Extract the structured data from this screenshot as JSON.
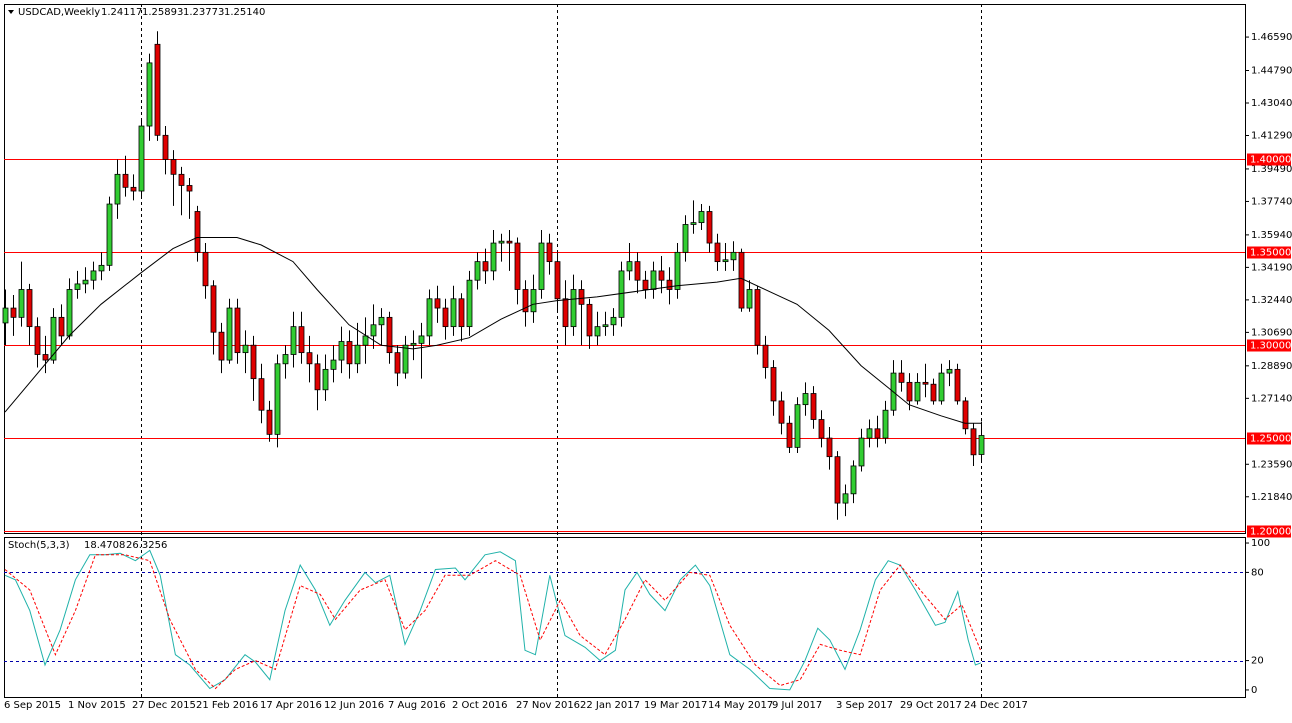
{
  "chart_data": {
    "type": "candlestick",
    "header": {
      "symbol": "USDCAD,Weekly",
      "values": [
        "1.24117",
        "1.25893",
        "1.23773",
        "1.25140"
      ]
    },
    "up_color": "#32cd32",
    "down_color": "#e00000",
    "categories": [
      "6 Sep 2015",
      null,
      null,
      null,
      null,
      null,
      null,
      null,
      "1 Nov 2015",
      null,
      null,
      null,
      null,
      null,
      null,
      null,
      "27 Dec 2015",
      null,
      null,
      null,
      null,
      null,
      null,
      null,
      "21 Feb 2016",
      null,
      null,
      null,
      null,
      null,
      null,
      null,
      "17 Apr 2016",
      null,
      null,
      null,
      null,
      null,
      null,
      null,
      "12 Jun 2016",
      null,
      null,
      null,
      null,
      null,
      null,
      null,
      "7 Aug 2016",
      null,
      null,
      null,
      null,
      null,
      null,
      null,
      "2 Oct 2016",
      null,
      null,
      null,
      null,
      null,
      null,
      null,
      "27 Nov 2016",
      null,
      null,
      null,
      null,
      null,
      null,
      null,
      "22 Jan 2017",
      null,
      null,
      null,
      null,
      null,
      null,
      null,
      "19 Mar 2017",
      null,
      null,
      null,
      null,
      null,
      null,
      null,
      "14 May 2017",
      null,
      null,
      null,
      null,
      null,
      null,
      null,
      "9 Jul 2017",
      null,
      null,
      null,
      null,
      null,
      null,
      null,
      "3 Sep 2017",
      null,
      null,
      null,
      null,
      null,
      null,
      null,
      "29 Oct 2017",
      null,
      null,
      null,
      null,
      null,
      null,
      null,
      "24 Dec 2017",
      null,
      null
    ],
    "ohlc": [
      [
        1.312,
        1.33,
        1.3,
        1.32
      ],
      [
        1.32,
        1.327,
        1.305,
        1.315
      ],
      [
        1.315,
        1.345,
        1.31,
        1.33
      ],
      [
        1.33,
        1.333,
        1.3,
        1.31
      ],
      [
        1.31,
        1.315,
        1.288,
        1.295
      ],
      [
        1.295,
        1.305,
        1.285,
        1.292
      ],
      [
        1.292,
        1.32,
        1.29,
        1.315
      ],
      [
        1.315,
        1.322,
        1.3,
        1.305
      ],
      [
        1.305,
        1.336,
        1.303,
        1.33
      ],
      [
        1.33,
        1.34,
        1.325,
        1.333
      ],
      [
        1.333,
        1.342,
        1.328,
        1.335
      ],
      [
        1.335,
        1.345,
        1.33,
        1.34
      ],
      [
        1.34,
        1.35,
        1.335,
        1.343
      ],
      [
        1.343,
        1.38,
        1.34,
        1.376
      ],
      [
        1.376,
        1.4,
        1.368,
        1.392
      ],
      [
        1.392,
        1.402,
        1.38,
        1.385
      ],
      [
        1.385,
        1.392,
        1.378,
        1.383
      ],
      [
        1.383,
        1.422,
        1.38,
        1.418
      ],
      [
        1.418,
        1.457,
        1.41,
        1.452
      ],
      [
        1.462,
        1.469,
        1.41,
        1.413
      ],
      [
        1.413,
        1.418,
        1.392,
        1.4
      ],
      [
        1.4,
        1.405,
        1.375,
        1.392
      ],
      [
        1.392,
        1.396,
        1.37,
        1.386
      ],
      [
        1.386,
        1.39,
        1.368,
        1.383
      ],
      [
        1.372,
        1.375,
        1.345,
        1.35
      ],
      [
        1.35,
        1.355,
        1.325,
        1.332
      ],
      [
        1.332,
        1.335,
        1.295,
        1.307
      ],
      [
        1.307,
        1.312,
        1.285,
        1.292
      ],
      [
        1.292,
        1.325,
        1.29,
        1.32
      ],
      [
        1.32,
        1.325,
        1.29,
        1.296
      ],
      [
        1.296,
        1.308,
        1.285,
        1.3
      ],
      [
        1.3,
        1.305,
        1.27,
        1.282
      ],
      [
        1.282,
        1.29,
        1.258,
        1.265
      ],
      [
        1.265,
        1.27,
        1.248,
        1.252
      ],
      [
        1.252,
        1.295,
        1.245,
        1.29
      ],
      [
        1.29,
        1.3,
        1.282,
        1.295
      ],
      [
        1.295,
        1.318,
        1.288,
        1.31
      ],
      [
        1.31,
        1.318,
        1.29,
        1.296
      ],
      [
        1.296,
        1.305,
        1.28,
        1.29
      ],
      [
        1.29,
        1.295,
        1.265,
        1.276
      ],
      [
        1.276,
        1.295,
        1.27,
        1.287
      ],
      [
        1.287,
        1.3,
        1.28,
        1.292
      ],
      [
        1.292,
        1.31,
        1.285,
        1.302
      ],
      [
        1.302,
        1.308,
        1.282,
        1.29
      ],
      [
        1.29,
        1.312,
        1.285,
        1.3
      ],
      [
        1.3,
        1.315,
        1.29,
        1.305
      ],
      [
        1.305,
        1.322,
        1.298,
        1.311
      ],
      [
        1.311,
        1.32,
        1.3,
        1.315
      ],
      [
        1.315,
        1.318,
        1.29,
        1.296
      ],
      [
        1.296,
        1.3,
        1.278,
        1.285
      ],
      [
        1.285,
        1.305,
        1.282,
        1.3
      ],
      [
        1.3,
        1.308,
        1.292,
        1.301
      ],
      [
        1.301,
        1.312,
        1.282,
        1.305
      ],
      [
        1.305,
        1.33,
        1.3,
        1.325
      ],
      [
        1.325,
        1.332,
        1.312,
        1.32
      ],
      [
        1.32,
        1.325,
        1.303,
        1.31
      ],
      [
        1.31,
        1.332,
        1.305,
        1.325
      ],
      [
        1.325,
        1.328,
        1.302,
        1.31
      ],
      [
        1.31,
        1.34,
        1.305,
        1.335
      ],
      [
        1.335,
        1.35,
        1.33,
        1.345
      ],
      [
        1.345,
        1.352,
        1.333,
        1.34
      ],
      [
        1.34,
        1.362,
        1.335,
        1.355
      ],
      [
        1.355,
        1.36,
        1.345,
        1.356
      ],
      [
        1.356,
        1.362,
        1.34,
        1.355
      ],
      [
        1.355,
        1.358,
        1.322,
        1.33
      ],
      [
        1.33,
        1.335,
        1.31,
        1.318
      ],
      [
        1.318,
        1.338,
        1.312,
        1.33
      ],
      [
        1.33,
        1.362,
        1.325,
        1.355
      ],
      [
        1.355,
        1.36,
        1.338,
        1.345
      ],
      [
        1.345,
        1.35,
        1.318,
        1.325
      ],
      [
        1.325,
        1.335,
        1.3,
        1.31
      ],
      [
        1.31,
        1.338,
        1.305,
        1.33
      ],
      [
        1.33,
        1.335,
        1.3,
        1.322
      ],
      [
        1.322,
        1.325,
        1.298,
        1.305
      ],
      [
        1.305,
        1.318,
        1.3,
        1.31
      ],
      [
        1.31,
        1.318,
        1.305,
        1.311
      ],
      [
        1.311,
        1.32,
        1.305,
        1.315
      ],
      [
        1.315,
        1.345,
        1.31,
        1.34
      ],
      [
        1.34,
        1.355,
        1.335,
        1.345
      ],
      [
        1.345,
        1.35,
        1.328,
        1.335
      ],
      [
        1.335,
        1.34,
        1.325,
        1.33
      ],
      [
        1.33,
        1.345,
        1.325,
        1.34
      ],
      [
        1.34,
        1.348,
        1.328,
        1.335
      ],
      [
        1.335,
        1.342,
        1.322,
        1.33
      ],
      [
        1.33,
        1.355,
        1.325,
        1.35
      ],
      [
        1.35,
        1.37,
        1.345,
        1.365
      ],
      [
        1.365,
        1.378,
        1.36,
        1.366
      ],
      [
        1.366,
        1.376,
        1.362,
        1.372
      ],
      [
        1.372,
        1.375,
        1.35,
        1.355
      ],
      [
        1.355,
        1.36,
        1.34,
        1.345
      ],
      [
        1.345,
        1.355,
        1.34,
        1.346
      ],
      [
        1.346,
        1.356,
        1.34,
        1.35
      ],
      [
        1.35,
        1.352,
        1.318,
        1.32
      ],
      [
        1.32,
        1.335,
        1.318,
        1.33
      ],
      [
        1.33,
        1.332,
        1.295,
        1.3
      ],
      [
        1.3,
        1.305,
        1.282,
        1.288
      ],
      [
        1.288,
        1.292,
        1.262,
        1.27
      ],
      [
        1.27,
        1.275,
        1.252,
        1.258
      ],
      [
        1.258,
        1.262,
        1.242,
        1.245
      ],
      [
        1.245,
        1.272,
        1.242,
        1.268
      ],
      [
        1.268,
        1.28,
        1.262,
        1.274
      ],
      [
        1.274,
        1.278,
        1.255,
        1.26
      ],
      [
        1.26,
        1.265,
        1.245,
        1.25
      ],
      [
        1.25,
        1.256,
        1.233,
        1.24
      ],
      [
        1.24,
        1.243,
        1.206,
        1.215
      ],
      [
        1.215,
        1.225,
        1.208,
        1.22
      ],
      [
        1.22,
        1.238,
        1.215,
        1.235
      ],
      [
        1.235,
        1.255,
        1.232,
        1.25
      ],
      [
        1.25,
        1.26,
        1.245,
        1.255
      ],
      [
        1.255,
        1.262,
        1.245,
        1.25
      ],
      [
        1.25,
        1.27,
        1.247,
        1.265
      ],
      [
        1.265,
        1.292,
        1.262,
        1.285
      ],
      [
        1.285,
        1.292,
        1.275,
        1.28
      ],
      [
        1.28,
        1.285,
        1.265,
        1.27
      ],
      [
        1.27,
        1.285,
        1.268,
        1.28
      ],
      [
        1.28,
        1.29,
        1.272,
        1.279
      ],
      [
        1.279,
        1.282,
        1.268,
        1.27
      ],
      [
        1.27,
        1.29,
        1.268,
        1.285
      ],
      [
        1.285,
        1.292,
        1.278,
        1.287
      ],
      [
        1.287,
        1.29,
        1.268,
        1.27
      ],
      [
        1.27,
        1.272,
        1.252,
        1.255
      ],
      [
        1.255,
        1.258,
        1.235,
        1.241
      ],
      [
        1.24117,
        1.25893,
        1.23773,
        1.2514
      ]
    ],
    "xlim": [
      -0.125,
      155
    ],
    "ylim": [
      1.1989,
      1.4837
    ],
    "yticks": [
      {
        "value": 1.4659,
        "label": "1.46590"
      },
      {
        "value": 1.4479,
        "label": "1.44790"
      },
      {
        "value": 1.4304,
        "label": "1.43040"
      },
      {
        "value": 1.4129,
        "label": "1.41290"
      },
      {
        "value": 1.3949,
        "label": "1.39490"
      },
      {
        "value": 1.3774,
        "label": "1.37740"
      },
      {
        "value": 1.3594,
        "label": "1.35940"
      },
      {
        "value": 1.3419,
        "label": "1.34190"
      },
      {
        "value": 1.3244,
        "label": "1.32440"
      },
      {
        "value": 1.3069,
        "label": "1.30690"
      },
      {
        "value": 1.2889,
        "label": "1.28890"
      },
      {
        "value": 1.2714,
        "label": "1.27140"
      },
      {
        "value": 1.2359,
        "label": "1.23590"
      },
      {
        "value": 1.2184,
        "label": "1.21840"
      }
    ],
    "levels": [
      {
        "value": 1.4,
        "label": "1.40000"
      },
      {
        "value": 1.35,
        "label": "1.35000"
      },
      {
        "value": 1.3,
        "label": "1.30000"
      },
      {
        "value": 1.25,
        "label": "1.25000"
      },
      {
        "value": 1.2,
        "label": "1.20000"
      }
    ],
    "level_color": "#ff0000",
    "ma": {
      "color": "#000000",
      "x": [
        0,
        8,
        12,
        17,
        21,
        24,
        29,
        32,
        36,
        39,
        43,
        47,
        51,
        54,
        58,
        62,
        66,
        69,
        74,
        79,
        84,
        89,
        92,
        96,
        99,
        103,
        107,
        111,
        113,
        117,
        120,
        122
      ],
      "values": [
        1.264,
        1.305,
        1.322,
        1.339,
        1.352,
        1.358,
        1.358,
        1.354,
        1.345,
        1.33,
        1.311,
        1.3,
        1.298,
        1.3,
        1.304,
        1.314,
        1.322,
        1.324,
        1.326,
        1.329,
        1.332,
        1.334,
        1.336,
        1.328,
        1.322,
        1.308,
        1.289,
        1.275,
        1.268,
        1.262,
        1.258,
        1.258
      ]
    },
    "stochastic": {
      "label": "Stoch(5,3,3)",
      "ylim": [
        -4.8,
        104.1
      ],
      "yticks": [
        0,
        20,
        80,
        100
      ],
      "levels": [
        20,
        80
      ],
      "level_color": "#0000aa",
      "series": [
        {
          "color": "#20b2aa",
          "dashed": false,
          "x": [
            0,
            1.3,
            3.1,
            5,
            6.9,
            8.8,
            10.6,
            12.5,
            14.4,
            16.3,
            18.1,
            19.4,
            21.3,
            23.1,
            25.6,
            27.5,
            30,
            31.3,
            33.1,
            35,
            36.9,
            38.8,
            40.6,
            42.5,
            45,
            46.3,
            48.1,
            50,
            51.9,
            53.8,
            56.3,
            57.5,
            60,
            61.9,
            63.8,
            65,
            66.3,
            68.1,
            70,
            72.5,
            74.4,
            76.3,
            77.5,
            79,
            80.6,
            82.5,
            84.4,
            86.3,
            88.1,
            90.6,
            93.1,
            95.6,
            98.1,
            100,
            101.6,
            103.1,
            105,
            106.9,
            108.8,
            110.4,
            111.9,
            113.8,
            116.3,
            117.5,
            119.1,
            120.4,
            121.3,
            122
          ],
          "values": [
            78,
            75,
            54,
            17,
            41,
            75,
            92,
            92,
            93,
            88,
            95,
            78,
            24,
            17,
            1,
            7,
            24,
            19,
            7,
            54,
            85,
            68,
            44,
            61,
            80,
            73,
            78,
            31,
            54,
            82,
            83,
            75,
            92,
            94,
            88,
            27,
            24,
            78,
            37,
            29,
            20,
            27,
            68,
            80,
            65,
            54,
            75,
            85,
            71,
            24,
            14,
            1,
            0,
            20,
            42,
            34,
            14,
            41,
            75,
            88,
            85,
            68,
            44,
            46,
            67,
            34,
            17,
            18.4708
          ]
        },
        {
          "color": "#ff0000",
          "dashed": true,
          "x": [
            0,
            3.1,
            6.3,
            8.8,
            11.3,
            15,
            18.1,
            20.6,
            23.8,
            26.3,
            28.8,
            31.3,
            33.8,
            36.9,
            39.4,
            41.3,
            44.4,
            47.5,
            50,
            52.5,
            55,
            58.1,
            61.3,
            64.4,
            66.9,
            69.4,
            71.9,
            75,
            77.5,
            80,
            82.5,
            85.6,
            88.1,
            90.6,
            93.8,
            96.9,
            99.4,
            101.9,
            104.4,
            106.9,
            109.4,
            111.9,
            114.4,
            117.5,
            119.6,
            122
          ],
          "values": [
            82,
            68,
            24,
            54,
            92,
            92,
            88,
            48,
            14,
            1,
            14,
            20,
            14,
            71,
            65,
            48,
            68,
            75,
            41,
            54,
            78,
            78,
            88,
            78,
            34,
            61,
            37,
            24,
            48,
            75,
            61,
            80,
            78,
            44,
            17,
            3,
            7,
            31,
            27,
            24,
            68,
            85,
            68,
            48,
            58,
            26.3256
          ]
        }
      ]
    }
  }
}
